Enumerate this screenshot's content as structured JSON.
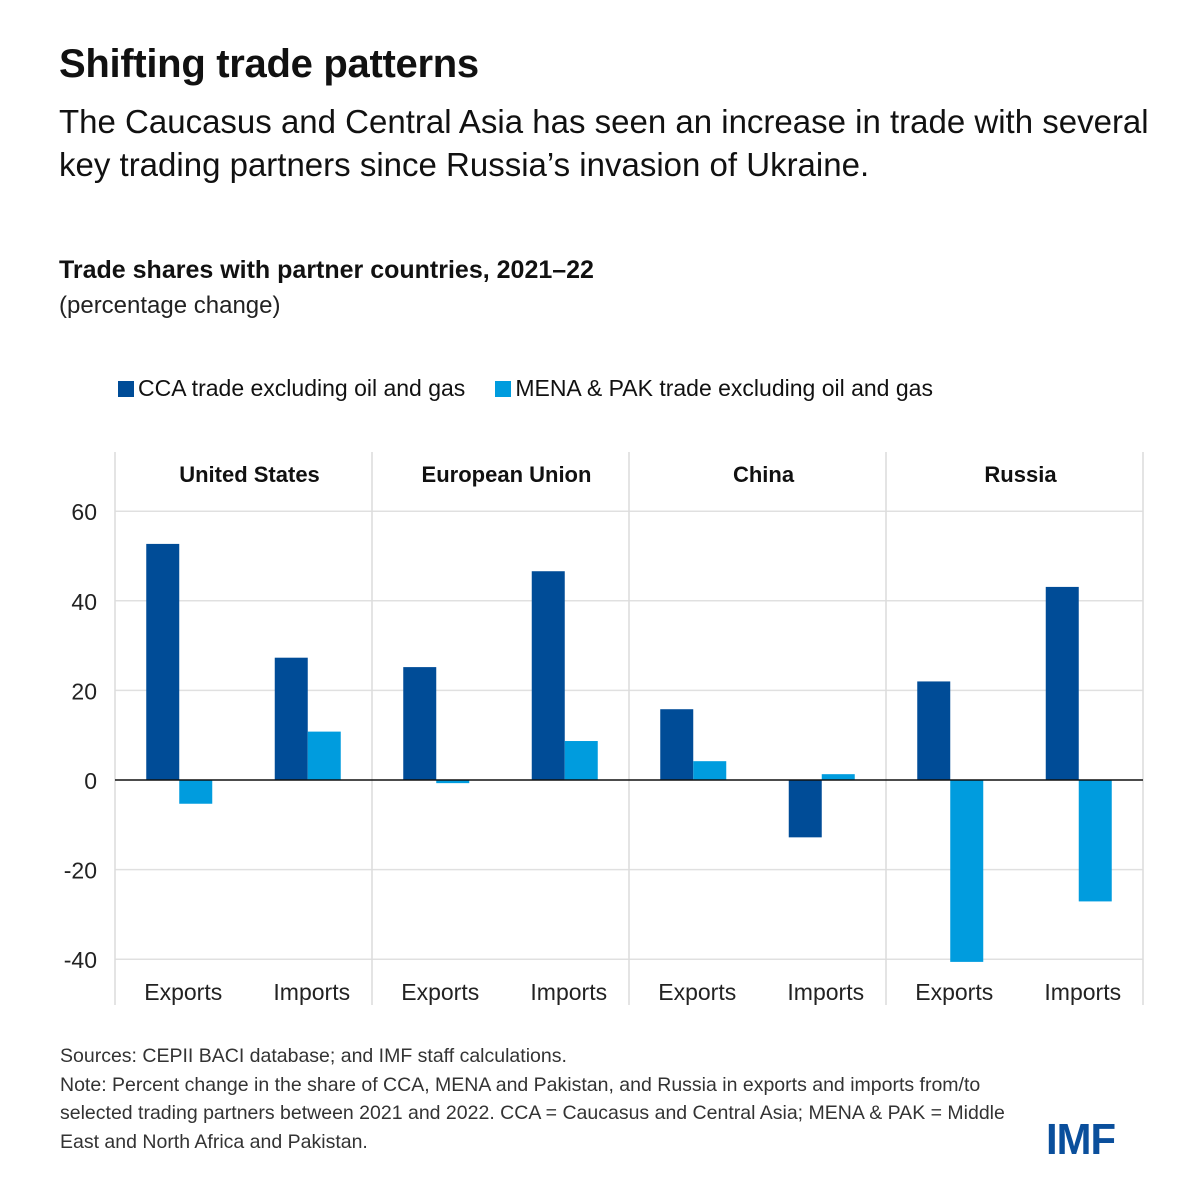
{
  "header": {
    "title": "Shifting trade patterns",
    "subtitle": "The Caucasus and Central Asia has seen an increase in trade with several key trading partners since Russia’s invasion of Ukraine."
  },
  "colors": {
    "cca": "#004c97",
    "mena_pak": "#009cde",
    "logo": "#0a4f9c"
  },
  "chart_data": {
    "type": "bar",
    "title": "Trade shares with partner countries, 2021–22",
    "subtitle": "(percentage change)",
    "xlabel": "",
    "ylabel": "",
    "ylim": [
      -40,
      60
    ],
    "yticks": [
      60,
      40,
      20,
      0,
      -20,
      -40
    ],
    "ytick_labels": [
      "60",
      "40",
      "20",
      "0",
      "-20",
      "-40"
    ],
    "grid": true,
    "legend_position": "top",
    "panels": [
      "United States",
      "European Union",
      "China",
      "Russia"
    ],
    "categories": [
      "Exports",
      "Imports",
      "Exports",
      "Imports",
      "Exports",
      "Imports",
      "Exports",
      "Imports"
    ],
    "series": [
      {
        "name": "CCA trade excluding oil and gas",
        "color": "#004c97",
        "values": [
          52.7,
          27.3,
          25.2,
          46.6,
          15.8,
          -12.8,
          22.0,
          43.1
        ]
      },
      {
        "name": "MENA & PAK trade excluding oil and gas",
        "color": "#009cde",
        "values": [
          -5.3,
          10.8,
          -0.7,
          8.7,
          4.2,
          1.3,
          -40.6,
          -27.1
        ]
      }
    ]
  },
  "footer": {
    "sources": "Sources: CEPII BACI database; and IMF staff calculations.",
    "note": "Note: Percent change in the share of CCA, MENA and Pakistan, and Russia in exports and imports from/to selected trading partners between 2021 and 2022. CCA = Caucasus and Central Asia; MENA & PAK = Middle East and North Africa and Pakistan.",
    "logo": "IMF"
  }
}
